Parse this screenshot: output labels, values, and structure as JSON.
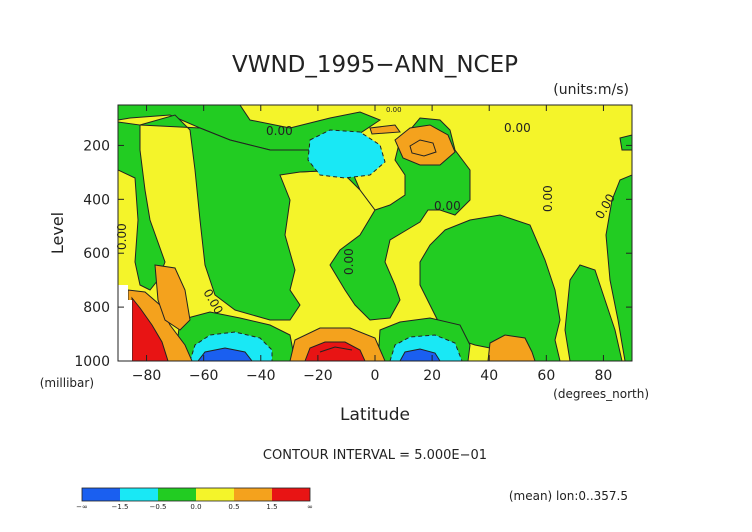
{
  "chart_data": {
    "type": "contour",
    "title": "VWND_1995−ANN_NCEP",
    "units": "(units:m/s)",
    "ylabel": "Level",
    "yunit": "(millibar)",
    "xlabel": "Latitude",
    "xunit": "(degrees_north)",
    "xlim": [
      -90,
      90
    ],
    "ylim": [
      1000,
      50
    ],
    "xticks": [
      -80,
      -60,
      -40,
      -20,
      0,
      20,
      40,
      60,
      80
    ],
    "xtick_labels": [
      "−80",
      "−60",
      "−40",
      "−20",
      "0",
      "20",
      "40",
      "60",
      "80"
    ],
    "yticks": [
      200,
      400,
      600,
      800,
      1000
    ],
    "ytick_labels": [
      "200",
      "400",
      "600",
      "800",
      "1000"
    ],
    "contour_interval": "CONTOUR INTERVAL = 5.000E−01",
    "contour_labels": [
      "0.00",
      "0.00",
      "0.00",
      "0.00",
      "0.00",
      "0.00",
      "0.00",
      "0.00",
      "0.00"
    ],
    "footer_note": "(mean) lon:0..357.5",
    "colorbar": {
      "colors": [
        "#1a5ff0",
        "#19e8f5",
        "#22cc22",
        "#f4f42a",
        "#f4a21d",
        "#e81414"
      ],
      "tick_labels": [
        "−∞",
        "−1.5",
        "−0.5",
        "0.0",
        "0.5",
        "1.5",
        "∞"
      ]
    },
    "regions": [
      {
        "level": "0 to 0.5",
        "lat": [
          -90,
          90
        ],
        "p": [
          50,
          1000
        ]
      },
      {
        "level": "-0.5 to 0",
        "lat": [
          -60,
          -30
        ],
        "p": [
          150,
          850
        ]
      },
      {
        "level": "-0.5 to 0",
        "lat": [
          -20,
          30
        ],
        "p": [
          60,
          750
        ]
      },
      {
        "level": "-0.5 to 0",
        "lat": [
          30,
          65
        ],
        "p": [
          300,
          900
        ]
      },
      {
        "level": "-1.5 to -0.5",
        "lat": [
          -60,
          -45
        ],
        "p": [
          880,
          1000
        ]
      },
      {
        "level": "-1.5 to -0.5",
        "lat": [
          -12,
          2
        ],
        "p": [
          120,
          270
        ]
      },
      {
        "level": "-1.5 to -0.5",
        "lat": [
          8,
          28
        ],
        "p": [
          880,
          1000
        ]
      },
      {
        "level": "0.5 to 1.5",
        "lat": [
          -88,
          -68
        ],
        "p": [
          660,
          1000
        ]
      },
      {
        "level": "0.5 to 1.5",
        "lat": [
          -28,
          -3
        ],
        "p": [
          860,
          1000
        ]
      },
      {
        "level": "0.5 to 1.5",
        "lat": [
          7,
          22
        ],
        "p": [
          100,
          250
        ]
      },
      {
        "level": "0.5 to 1.5",
        "lat": [
          38,
          55
        ],
        "p": [
          880,
          1000
        ]
      },
      {
        "level": ">1.5",
        "lat": [
          -87,
          -76
        ],
        "p": [
          780,
          1000
        ]
      },
      {
        "level": ">1.5",
        "lat": [
          -24,
          -6
        ],
        "p": [
          900,
          1000
        ]
      },
      {
        "level": "<-1.5",
        "lat": [
          -57,
          -46
        ],
        "p": [
          950,
          1000
        ]
      },
      {
        "level": "<-1.5",
        "lat": [
          11,
          21
        ],
        "p": [
          955,
          1000
        ]
      }
    ]
  }
}
